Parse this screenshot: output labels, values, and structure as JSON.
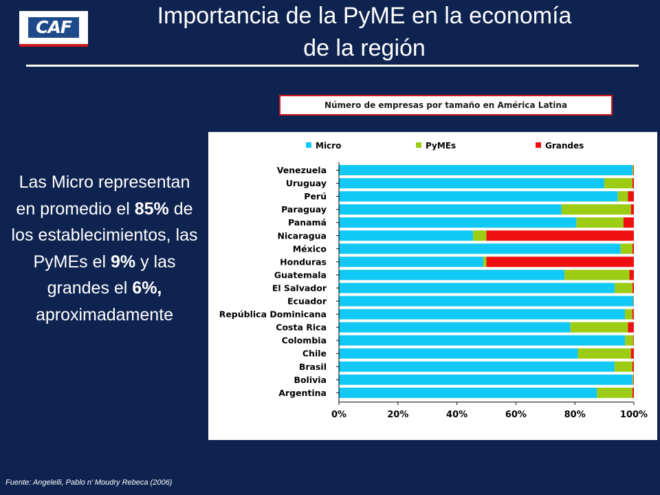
{
  "logo": {
    "text": "CAF"
  },
  "title": {
    "line1": "Importancia de la PyME en la economía",
    "line2": "de la región"
  },
  "side_text": {
    "part1": "Las Micro representan en promedio el ",
    "micro_pct": "85%",
    "part2": " de los establecimientos, las PyMEs el ",
    "pymes_pct": "9%",
    "part3": " y las grandes el ",
    "grandes_pct": "6%,",
    "part4": " aproximadamente"
  },
  "source": "Fuente: Angelelli, Pablo n’ Moudry Rebeca (2006)",
  "colors": {
    "micro": "#12c8f5",
    "pymes": "#9ccc14",
    "grandes": "#ee1010",
    "background": "#0f2350"
  },
  "chart_data": {
    "type": "bar",
    "orientation": "horizontal",
    "stacked": "percent",
    "title": "Número de empresas por tamaño en América Latina",
    "categories": [
      "Venezuela",
      "Uruguay",
      "Perú",
      "Paraguay",
      "Panamá",
      "Nicaragua",
      "México",
      "Honduras",
      "Guatemala",
      "El  Salvador",
      "Ecuador",
      "República  Dominicana",
      "Costa  Rica",
      "Colombia",
      "Chile",
      "Brasil",
      "Bolivia",
      "Argentina"
    ],
    "series": [
      {
        "name": "Micro",
        "color": "#12c8f5",
        "values": [
          99.5,
          90,
          94.5,
          75.5,
          80.5,
          45.5,
          95.5,
          49,
          76.5,
          93.5,
          99.8,
          97,
          78.5,
          97,
          81,
          93.5,
          99.5,
          87.5
        ]
      },
      {
        "name": "PyMEs",
        "color": "#9ccc14",
        "values": [
          0.3,
          9.5,
          3.5,
          23.5,
          16,
          4.5,
          4,
          1,
          22,
          6,
          0.1,
          2.5,
          19.5,
          2.8,
          18,
          6,
          0.3,
          12
        ]
      },
      {
        "name": "Grandes",
        "color": "#ee1010",
        "values": [
          0.2,
          0.5,
          2,
          1,
          3.5,
          50,
          0.5,
          50,
          1.5,
          0.5,
          0.1,
          0.5,
          2,
          0.2,
          1,
          0.5,
          0.2,
          0.5
        ]
      }
    ],
    "x_ticks": [
      "0%",
      "20%",
      "40%",
      "60%",
      "80%",
      "100%"
    ],
    "xlim": [
      0,
      100
    ],
    "legend_position": "top",
    "grid": false
  }
}
